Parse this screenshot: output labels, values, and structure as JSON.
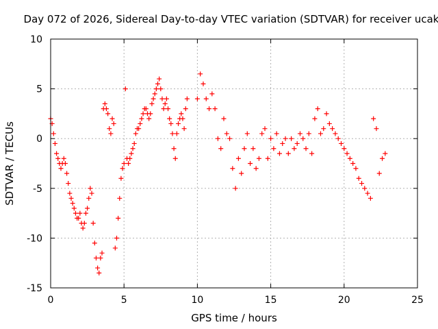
{
  "chart_data": {
    "type": "scatter",
    "title": "Day 072 of 2026, Sidereal Day-to-day VTEC variation (SDTVAR) for receiver ucak",
    "xlabel": "GPS time / hours",
    "ylabel": "SDTVAR / TECUs",
    "xlim": [
      0,
      25
    ],
    "ylim": [
      -15,
      10
    ],
    "xticks": [
      0,
      5,
      10,
      15,
      20,
      25
    ],
    "yticks": [
      -15,
      -10,
      -5,
      0,
      5,
      10
    ],
    "grid": true,
    "marker": "+",
    "colors": {
      "series": "#ff0000",
      "grid": "#b0b0b0",
      "axis": "#000000"
    },
    "series": [
      {
        "name": "SDTVAR",
        "x": [
          0.0,
          0.1,
          0.2,
          0.3,
          0.4,
          0.5,
          0.6,
          0.7,
          0.8,
          0.9,
          1.0,
          1.1,
          1.2,
          1.3,
          1.4,
          1.5,
          1.6,
          1.7,
          1.8,
          1.9,
          2.0,
          2.1,
          2.2,
          2.3,
          2.4,
          2.5,
          2.6,
          2.7,
          2.8,
          2.9,
          3.0,
          3.1,
          3.2,
          3.3,
          3.4,
          3.5,
          3.6,
          3.7,
          3.8,
          3.9,
          4.0,
          4.1,
          4.2,
          4.3,
          4.4,
          4.5,
          4.6,
          4.7,
          4.8,
          4.9,
          5.0,
          5.1,
          5.2,
          5.3,
          5.4,
          5.5,
          5.6,
          5.7,
          5.8,
          5.9,
          6.0,
          6.1,
          6.2,
          6.3,
          6.4,
          6.5,
          6.6,
          6.7,
          6.8,
          6.9,
          7.0,
          7.1,
          7.2,
          7.3,
          7.4,
          7.5,
          7.6,
          7.7,
          7.8,
          7.9,
          8.0,
          8.1,
          8.2,
          8.3,
          8.4,
          8.5,
          8.6,
          8.7,
          8.8,
          8.9,
          9.0,
          9.1,
          9.2,
          9.3,
          10.0,
          10.2,
          10.4,
          10.6,
          10.8,
          11.0,
          11.2,
          11.4,
          11.6,
          11.8,
          12.0,
          12.2,
          12.4,
          12.6,
          12.8,
          13.0,
          13.2,
          13.4,
          13.6,
          13.8,
          14.0,
          14.2,
          14.4,
          14.6,
          14.8,
          15.0,
          15.2,
          15.4,
          15.6,
          15.8,
          16.0,
          16.2,
          16.4,
          16.6,
          16.8,
          17.0,
          17.2,
          17.4,
          17.6,
          17.8,
          18.0,
          18.2,
          18.4,
          18.6,
          18.8,
          19.0,
          19.2,
          19.4,
          19.6,
          19.8,
          20.0,
          20.2,
          20.4,
          20.6,
          20.8,
          21.0,
          21.2,
          21.4,
          21.6,
          21.8,
          22.0,
          22.2,
          22.4,
          22.6,
          22.8
        ],
        "y": [
          2.0,
          1.5,
          0.5,
          -0.5,
          -1.5,
          -2.0,
          -2.5,
          -3.0,
          -2.5,
          -2.0,
          -2.5,
          -3.5,
          -4.5,
          -5.5,
          -6.0,
          -6.5,
          -7.0,
          -7.5,
          -8.0,
          -8.0,
          -7.5,
          -8.5,
          -9.0,
          -8.5,
          -7.5,
          -7.0,
          -6.0,
          -5.0,
          -5.5,
          -8.5,
          -10.5,
          -12.0,
          -13.0,
          -13.5,
          -12.0,
          -11.5,
          3.0,
          3.5,
          3.0,
          2.5,
          1.0,
          0.5,
          2.0,
          1.5,
          -11.0,
          -10.0,
          -8.0,
          -6.0,
          -4.0,
          -3.0,
          -2.5,
          5.0,
          -2.0,
          -2.5,
          -2.0,
          -1.5,
          -1.0,
          -0.5,
          0.5,
          1.0,
          1.0,
          1.5,
          2.0,
          2.5,
          3.0,
          3.0,
          2.5,
          2.0,
          2.5,
          3.5,
          4.0,
          4.5,
          5.0,
          5.5,
          6.0,
          5.0,
          4.0,
          3.0,
          3.5,
          4.0,
          3.0,
          2.0,
          1.5,
          0.5,
          -1.0,
          -2.0,
          0.5,
          1.5,
          2.0,
          2.5,
          2.0,
          1.0,
          3.0,
          4.0,
          4.0,
          6.5,
          5.5,
          4.0,
          3.0,
          4.5,
          3.0,
          0.0,
          -1.0,
          2.0,
          0.5,
          0.0,
          -3.0,
          -5.0,
          -2.0,
          -3.5,
          -1.0,
          0.5,
          -2.5,
          -1.0,
          -3.0,
          -2.0,
          0.5,
          1.0,
          -2.0,
          0.0,
          -1.0,
          0.5,
          -1.5,
          -0.5,
          0.0,
          -1.5,
          0.0,
          -1.0,
          -0.5,
          0.5,
          0.0,
          -1.0,
          0.5,
          -1.5,
          2.0,
          3.0,
          0.5,
          1.0,
          2.5,
          1.5,
          1.0,
          0.5,
          0.0,
          -0.5,
          -1.0,
          -1.5,
          -2.0,
          -2.5,
          -3.0,
          -4.0,
          -4.5,
          -5.0,
          -5.5,
          -6.0,
          2.0,
          1.0,
          -3.5,
          -2.0,
          -1.5
        ]
      }
    ]
  }
}
